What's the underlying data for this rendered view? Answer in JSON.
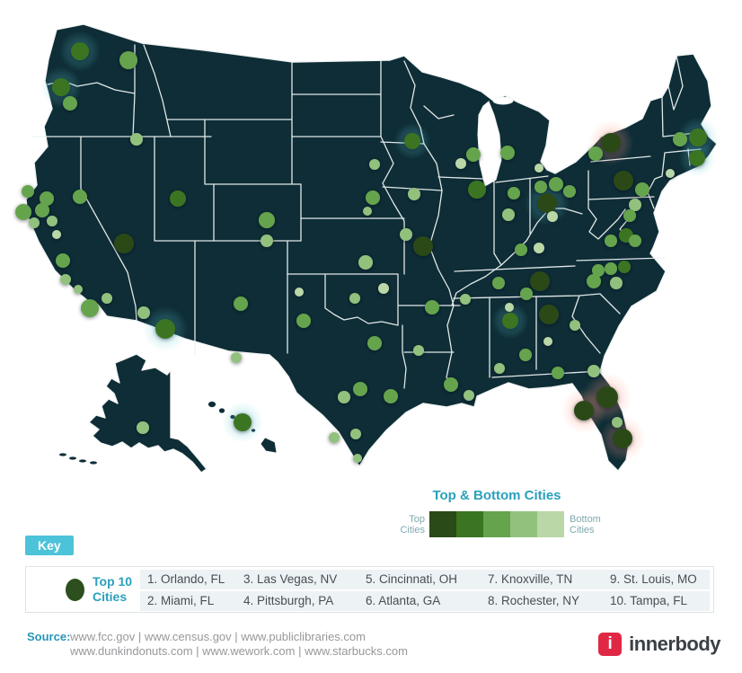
{
  "legend": {
    "title": "Top & Bottom Cities",
    "left_label_line1": "Top",
    "left_label_line2": "Cities",
    "right_label_line1": "Bottom",
    "right_label_line2": "Cities"
  },
  "key": {
    "badge": "Key",
    "top10_line1": "Top 10",
    "top10_line2": "Cities",
    "rows": [
      [
        "1. Orlando, FL",
        "3. Las Vegas, NV",
        "5. Cincinnati, OH",
        "7. Knoxville, TN",
        "9. St. Louis, MO"
      ],
      [
        "2. Miami, FL",
        "4. Pittsburgh, PA",
        "6. Atlanta, GA",
        "8. Rochester, NY",
        "10. Tampa, FL"
      ]
    ]
  },
  "source": {
    "label": "Source:",
    "line1": "www.fcc.gov | www.census.gov | www.publiclibraries.com",
    "line2": "www.dunkindonuts.com | www.wework.com | www.starbucks.com"
  },
  "brand": {
    "icon": "i",
    "name": "innerbody",
    "accent_color": "#e02845"
  },
  "chart_data": {
    "type": "scatter",
    "title": "Top & Bottom Cities",
    "map_background": "#0e2d36",
    "scale": {
      "labels": [
        "Top Cities",
        "Bottom Cities"
      ],
      "colors": [
        "#2a4a17",
        "#3a7522",
        "#65a44d",
        "#92c17e",
        "#bad7a7"
      ]
    },
    "top_cities_ranked": [
      "Orlando, FL",
      "Miami, FL",
      "Las Vegas, NV",
      "Pittsburgh, PA",
      "Cincinnati, OH",
      "Atlanta, GA",
      "Knoxville, TN",
      "Rochester, NY",
      "St. Louis, MO",
      "Tampa, FL"
    ],
    "point_format": [
      "x",
      "y",
      "radius",
      "color_level_1dark_to_5light",
      "glow_0none_1warm_2cool",
      "label_if_top10"
    ],
    "points": [
      [
        89,
        57,
        10,
        2,
        2
      ],
      [
        143,
        67,
        10,
        3,
        0
      ],
      [
        68,
        97,
        10,
        2,
        2
      ],
      [
        78,
        115,
        8,
        3,
        0
      ],
      [
        152,
        155,
        7,
        4,
        0
      ],
      [
        31,
        213,
        7,
        3,
        0
      ],
      [
        52,
        221,
        8,
        3,
        0
      ],
      [
        89,
        219,
        8,
        3,
        0
      ],
      [
        26,
        236,
        9,
        3,
        0
      ],
      [
        47,
        234,
        8,
        3,
        0
      ],
      [
        38,
        248,
        6,
        4,
        0
      ],
      [
        58,
        246,
        6,
        4,
        0
      ],
      [
        63,
        261,
        5,
        5,
        0
      ],
      [
        70,
        290,
        8,
        3,
        0
      ],
      [
        73,
        311,
        6,
        4,
        0
      ],
      [
        87,
        322,
        5,
        4,
        0
      ],
      [
        119,
        332,
        6,
        4,
        0
      ],
      [
        100,
        343,
        10,
        3,
        0
      ],
      [
        160,
        348,
        7,
        4,
        0
      ],
      [
        184,
        366,
        11,
        2,
        2
      ],
      [
        138,
        271,
        11,
        1,
        0,
        "Las Vegas, NV"
      ],
      [
        198,
        221,
        9,
        2,
        0
      ],
      [
        297,
        245,
        9,
        3,
        0
      ],
      [
        297,
        268,
        7,
        4,
        0
      ],
      [
        268,
        338,
        8,
        3,
        0
      ],
      [
        263,
        398,
        6,
        4,
        0
      ],
      [
        459,
        157,
        9,
        2,
        2
      ],
      [
        417,
        183,
        6,
        4,
        0
      ],
      [
        415,
        220,
        8,
        3,
        0
      ],
      [
        409,
        235,
        5,
        4,
        0
      ],
      [
        461,
        216,
        7,
        4,
        0
      ],
      [
        452,
        261,
        7,
        4,
        0
      ],
      [
        471,
        274,
        11,
        1,
        0,
        "St. Louis, MO"
      ],
      [
        407,
        292,
        8,
        4,
        0
      ],
      [
        333,
        325,
        5,
        5,
        0
      ],
      [
        338,
        357,
        8,
        3,
        0
      ],
      [
        395,
        332,
        6,
        4,
        0
      ],
      [
        427,
        321,
        6,
        5,
        0
      ],
      [
        481,
        342,
        8,
        3,
        0
      ],
      [
        513,
        182,
        6,
        5,
        0
      ],
      [
        527,
        172,
        8,
        3,
        0
      ],
      [
        531,
        211,
        10,
        2,
        0
      ],
      [
        565,
        170,
        8,
        3,
        0
      ],
      [
        600,
        187,
        5,
        5,
        0
      ],
      [
        602,
        208,
        7,
        3,
        0
      ],
      [
        619,
        205,
        8,
        3,
        0
      ],
      [
        634,
        213,
        7,
        3,
        0
      ],
      [
        572,
        215,
        7,
        3,
        0
      ],
      [
        566,
        239,
        7,
        4,
        0
      ],
      [
        609,
        226,
        11,
        1,
        2,
        "Cincinnati, OH"
      ],
      [
        615,
        241,
        6,
        5,
        0
      ],
      [
        580,
        278,
        7,
        3,
        0
      ],
      [
        600,
        276,
        6,
        5,
        0
      ],
      [
        555,
        315,
        7,
        3,
        0
      ],
      [
        586,
        327,
        7,
        3,
        0
      ],
      [
        601,
        313,
        11,
        1,
        0,
        "Knoxville, TN"
      ],
      [
        518,
        333,
        6,
        4,
        0
      ],
      [
        567,
        342,
        5,
        5,
        0
      ],
      [
        568,
        357,
        9,
        2,
        2
      ],
      [
        585,
        395,
        7,
        3,
        0
      ],
      [
        556,
        410,
        6,
        4,
        0
      ],
      [
        611,
        350,
        11,
        1,
        0,
        "Atlanta, GA"
      ],
      [
        640,
        362,
        6,
        4,
        0
      ],
      [
        610,
        380,
        5,
        5,
        0
      ],
      [
        621,
        415,
        7,
        3,
        0
      ],
      [
        661,
        413,
        7,
        4,
        0
      ],
      [
        466,
        390,
        6,
        4,
        0
      ],
      [
        502,
        428,
        8,
        3,
        0
      ],
      [
        522,
        440,
        6,
        4,
        0
      ],
      [
        417,
        382,
        8,
        3,
        0
      ],
      [
        401,
        433,
        8,
        3,
        0
      ],
      [
        383,
        442,
        7,
        4,
        0
      ],
      [
        435,
        441,
        8,
        3,
        0
      ],
      [
        396,
        483,
        6,
        4,
        0
      ],
      [
        372,
        487,
        6,
        4,
        0
      ],
      [
        398,
        510,
        5,
        4,
        0
      ],
      [
        676,
        442,
        12,
        1,
        1,
        "Orlando, FL"
      ],
      [
        650,
        457,
        11,
        1,
        1,
        "Tampa, FL"
      ],
      [
        687,
        470,
        6,
        4,
        0
      ],
      [
        693,
        488,
        11,
        1,
        1,
        "Miami, FL"
      ],
      [
        680,
        159,
        11,
        1,
        1,
        "Rochester, NY"
      ],
      [
        663,
        171,
        8,
        3,
        0
      ],
      [
        746,
        193,
        5,
        5,
        0
      ],
      [
        757,
        155,
        8,
        3,
        0
      ],
      [
        777,
        153,
        10,
        2,
        2
      ],
      [
        776,
        176,
        9,
        2,
        2
      ],
      [
        694,
        201,
        11,
        1,
        0,
        "Pittsburgh, PA"
      ],
      [
        715,
        211,
        8,
        3,
        0
      ],
      [
        707,
        228,
        7,
        4,
        0
      ],
      [
        701,
        240,
        7,
        3,
        0
      ],
      [
        697,
        262,
        8,
        2,
        0
      ],
      [
        680,
        268,
        7,
        3,
        0
      ],
      [
        707,
        268,
        7,
        3,
        0
      ],
      [
        666,
        301,
        7,
        3,
        0
      ],
      [
        680,
        299,
        7,
        3,
        0
      ],
      [
        695,
        297,
        7,
        2,
        0
      ],
      [
        661,
        313,
        8,
        3,
        0
      ],
      [
        686,
        315,
        7,
        4,
        0
      ],
      [
        159,
        476,
        7,
        4,
        0
      ],
      [
        270,
        470,
        10,
        2,
        2
      ]
    ]
  }
}
